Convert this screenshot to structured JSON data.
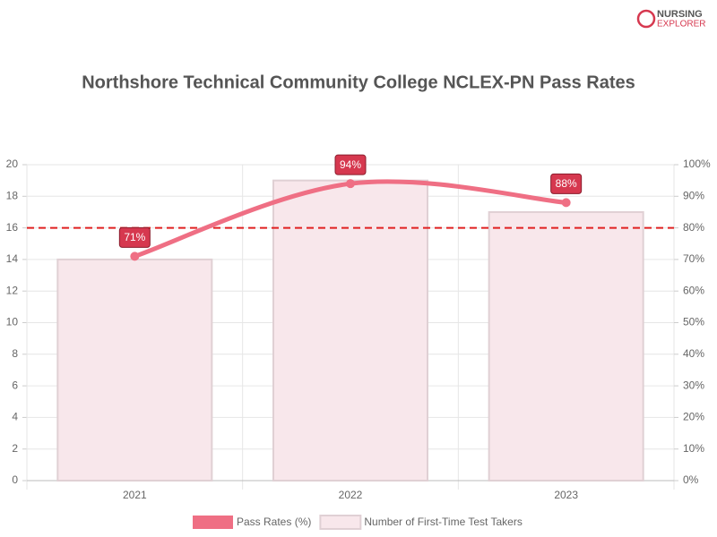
{
  "logo": {
    "line1": "NURSING",
    "line2": "EXPLORER"
  },
  "chart_data": {
    "type": "combo",
    "title": "Northshore Technical Community College NCLEX-PN Pass Rates",
    "categories": [
      "2021",
      "2022",
      "2023"
    ],
    "series": [
      {
        "name": "Pass Rates (%)",
        "type": "line",
        "axis": "y2",
        "color": "#ef6f84",
        "values": [
          71,
          94,
          88
        ],
        "value_labels": [
          "71%",
          "94%",
          "88%"
        ]
      },
      {
        "name": "Number of First-Time Test Takers",
        "type": "bar",
        "color": "#f8e7eb",
        "values": [
          14,
          19,
          17
        ]
      }
    ],
    "reference_line": {
      "axis": "y2",
      "value": 80,
      "color": "#e02020"
    },
    "ylim": [
      0,
      20
    ],
    "yticks": [
      0,
      2,
      4,
      6,
      8,
      10,
      12,
      14,
      16,
      18,
      20
    ],
    "y2lim": [
      0,
      100
    ],
    "y2ticks": [
      {
        "value": 0,
        "label": "0%"
      },
      {
        "value": 10,
        "label": "10%"
      },
      {
        "value": 20,
        "label": "20%"
      },
      {
        "value": 30,
        "label": "30%"
      },
      {
        "value": 40,
        "label": "40%"
      },
      {
        "value": 50,
        "label": "50%"
      },
      {
        "value": 60,
        "label": "60%"
      },
      {
        "value": 70,
        "label": "70%"
      },
      {
        "value": 80,
        "label": "80%"
      },
      {
        "value": 90,
        "label": "90%"
      },
      {
        "value": 100,
        "label": "100%"
      }
    ],
    "grid": true
  }
}
